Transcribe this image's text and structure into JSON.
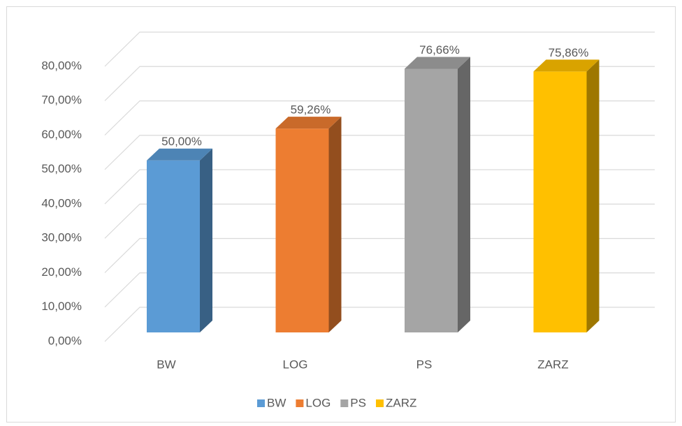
{
  "chart_data": {
    "type": "bar3d",
    "categories": [
      "BW",
      "LOG",
      "PS",
      "ZARZ"
    ],
    "values": [
      50,
      59.26,
      76.66,
      75.86
    ],
    "value_labels": [
      "50,00%",
      "59,26%",
      "76,66%",
      "75,86%"
    ],
    "colors": [
      "#5b9bd5",
      "#ed7d31",
      "#a5a5a5",
      "#ffc000"
    ],
    "ylim": [
      0,
      80
    ],
    "yticks": [
      {
        "value": 0,
        "label": "0,00%"
      },
      {
        "value": 10,
        "label": "10,00%"
      },
      {
        "value": 20,
        "label": "20,00%"
      },
      {
        "value": 30,
        "label": "30,00%"
      },
      {
        "value": 40,
        "label": "40,00%"
      },
      {
        "value": 50,
        "label": "50,00%"
      },
      {
        "value": 60,
        "label": "60,00%"
      },
      {
        "value": 70,
        "label": "70,00%"
      },
      {
        "value": 80,
        "label": "80,00%"
      }
    ],
    "grid": true,
    "legend": "bottom"
  }
}
